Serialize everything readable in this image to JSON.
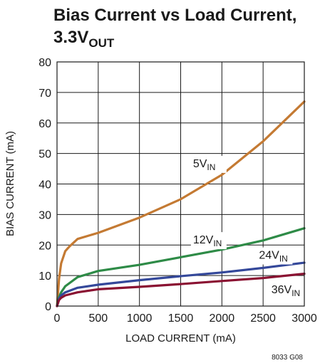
{
  "chart_data": {
    "type": "line",
    "title": {
      "main": "Bias Current vs Load Current,",
      "line2": "3.3V",
      "line2_sub": "OUT"
    },
    "xlabel": "LOAD CURRENT (mA)",
    "ylabel": "BIAS CURRENT (mA)",
    "xlim": [
      0,
      3000
    ],
    "ylim": [
      0,
      80
    ],
    "xticks": [
      "0",
      "500",
      "1000",
      "1500",
      "2000",
      "2500",
      "3000"
    ],
    "yticks": [
      "0",
      "10",
      "20",
      "30",
      "40",
      "50",
      "60",
      "70",
      "80"
    ],
    "grid": true,
    "series": [
      {
        "name": "5V",
        "name_sub": "IN",
        "color": "#c47a33",
        "x": [
          0,
          25,
          50,
          100,
          150,
          250,
          500,
          1000,
          1500,
          2000,
          2500,
          3000
        ],
        "y": [
          0,
          9,
          14,
          18,
          19.5,
          22,
          24,
          29,
          35,
          43,
          54,
          67
        ]
      },
      {
        "name": "12V",
        "name_sub": "IN",
        "color": "#2e8b47",
        "x": [
          0,
          25,
          50,
          100,
          250,
          500,
          1000,
          1500,
          2000,
          2500,
          3000
        ],
        "y": [
          0,
          3,
          4.5,
          6.5,
          9.5,
          11.5,
          13.5,
          16,
          18.5,
          21.5,
          25.5
        ]
      },
      {
        "name": "24V",
        "name_sub": "IN",
        "color": "#34489a",
        "x": [
          0,
          25,
          50,
          100,
          250,
          500,
          1000,
          1500,
          2000,
          2500,
          3000
        ],
        "y": [
          0,
          2.5,
          3.5,
          4.5,
          6,
          7,
          8.5,
          9.8,
          11,
          12.5,
          14.2
        ]
      },
      {
        "name": "36V",
        "name_sub": "IN",
        "color": "#8a1232",
        "x": [
          0,
          25,
          50,
          100,
          250,
          500,
          1000,
          1500,
          2000,
          2500,
          3000
        ],
        "y": [
          0,
          2,
          2.7,
          3.5,
          4.5,
          5.5,
          6.3,
          7.2,
          8.2,
          9.2,
          10.6
        ]
      }
    ],
    "note": "8033 G08"
  }
}
